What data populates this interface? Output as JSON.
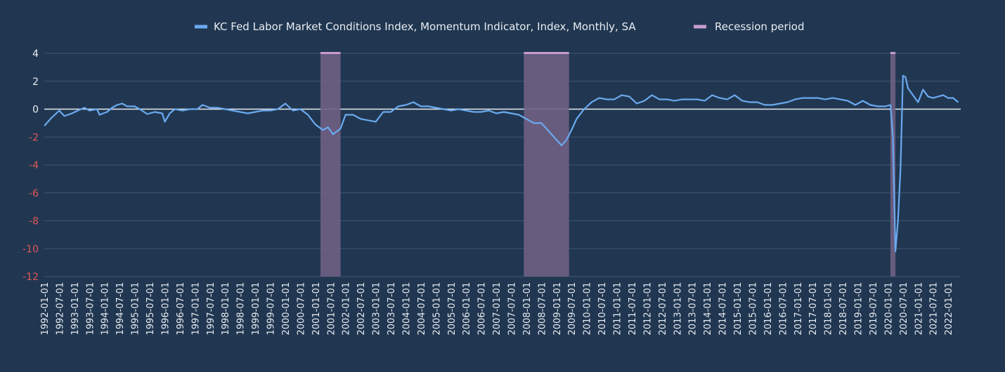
{
  "chart_data": {
    "type": "line",
    "title": "",
    "xlabel": "",
    "ylabel": "",
    "ylim": [
      -12,
      4
    ],
    "yticks": [
      4,
      2,
      0,
      -2,
      -4,
      -6,
      -8,
      -10,
      -12
    ],
    "xlim": [
      "1992-01-01",
      "2022-06-01"
    ],
    "grid": true,
    "legend_position": "top-center",
    "colors": {
      "background": "#213751",
      "grid": "#3e5673",
      "zero_line": "#e8ecf2",
      "line": "#6aaaf0",
      "recession_fill": "#6f6083",
      "recession_top": "#c89ccf",
      "tick_text": "#e8ecf2",
      "negative_tick_text": "#e05656",
      "legend_text": "#e8ecf2"
    },
    "x_ticks": [
      "1992-01-01",
      "1992-07-01",
      "1993-01-01",
      "1993-07-01",
      "1994-01-01",
      "1994-07-01",
      "1995-01-01",
      "1995-07-01",
      "1996-01-01",
      "1996-07-01",
      "1997-01-01",
      "1997-07-01",
      "1998-01-01",
      "1998-07-01",
      "1999-01-01",
      "1999-07-01",
      "2000-01-01",
      "2000-07-01",
      "2001-01-01",
      "2001-07-01",
      "2002-01-01",
      "2002-07-01",
      "2003-01-01",
      "2003-07-01",
      "2004-01-01",
      "2004-07-01",
      "2005-01-01",
      "2005-07-01",
      "2006-01-01",
      "2006-07-01",
      "2007-01-01",
      "2007-07-01",
      "2008-01-01",
      "2008-07-01",
      "2009-01-01",
      "2009-07-01",
      "2010-01-01",
      "2010-07-01",
      "2011-01-01",
      "2011-07-01",
      "2012-01-01",
      "2012-07-01",
      "2013-01-01",
      "2013-07-01",
      "2014-01-01",
      "2014-07-01",
      "2015-01-01",
      "2015-07-01",
      "2016-01-01",
      "2016-07-01",
      "2017-01-01",
      "2017-07-01",
      "2018-01-01",
      "2018-07-01",
      "2019-01-01",
      "2019-07-01",
      "2020-01-01",
      "2020-07-01",
      "2021-01-01",
      "2021-07-01",
      "2022-01-01"
    ],
    "series": [
      {
        "name": "KC Fed Labor Market Conditions Index, Momentum Indicator, Index, Monthly, SA",
        "points": [
          [
            "1992-01-01",
            -1.2
          ],
          [
            "1992-04-01",
            -0.6
          ],
          [
            "1992-07-01",
            -0.1
          ],
          [
            "1992-09-01",
            -0.5
          ],
          [
            "1992-12-01",
            -0.3
          ],
          [
            "1993-03-01",
            -0.05
          ],
          [
            "1993-05-01",
            0.1
          ],
          [
            "1993-07-01",
            -0.1
          ],
          [
            "1993-10-01",
            0.0
          ],
          [
            "1993-11-01",
            -0.4
          ],
          [
            "1994-02-01",
            -0.2
          ],
          [
            "1994-04-01",
            0.1
          ],
          [
            "1994-06-01",
            0.3
          ],
          [
            "1994-08-01",
            0.4
          ],
          [
            "1994-10-01",
            0.2
          ],
          [
            "1995-01-01",
            0.2
          ],
          [
            "1995-03-01",
            0.0
          ],
          [
            "1995-06-01",
            -0.35
          ],
          [
            "1995-09-01",
            -0.2
          ],
          [
            "1995-12-01",
            -0.3
          ],
          [
            "1996-01-01",
            -0.9
          ],
          [
            "1996-03-01",
            -0.3
          ],
          [
            "1996-05-01",
            0.0
          ],
          [
            "1996-08-01",
            -0.1
          ],
          [
            "1996-11-01",
            0.0
          ],
          [
            "1997-02-01",
            0.0
          ],
          [
            "1997-04-01",
            0.3
          ],
          [
            "1997-07-01",
            0.1
          ],
          [
            "1997-10-01",
            0.1
          ],
          [
            "1998-01-01",
            0.0
          ],
          [
            "1998-04-01",
            -0.1
          ],
          [
            "1998-07-01",
            -0.2
          ],
          [
            "1998-10-01",
            -0.3
          ],
          [
            "1999-01-01",
            -0.2
          ],
          [
            "1999-04-01",
            -0.1
          ],
          [
            "1999-07-01",
            -0.1
          ],
          [
            "1999-10-01",
            0.0
          ],
          [
            "2000-01-01",
            0.4
          ],
          [
            "2000-04-01",
            -0.1
          ],
          [
            "2000-07-01",
            0.0
          ],
          [
            "2000-10-01",
            -0.4
          ],
          [
            "2001-01-01",
            -1.1
          ],
          [
            "2001-04-01",
            -1.5
          ],
          [
            "2001-06-01",
            -1.3
          ],
          [
            "2001-08-01",
            -1.8
          ],
          [
            "2001-11-01",
            -1.4
          ],
          [
            "2002-01-01",
            -0.4
          ],
          [
            "2002-04-01",
            -0.4
          ],
          [
            "2002-07-01",
            -0.7
          ],
          [
            "2002-10-01",
            -0.8
          ],
          [
            "2003-01-01",
            -0.9
          ],
          [
            "2003-04-01",
            -0.2
          ],
          [
            "2003-07-01",
            -0.2
          ],
          [
            "2003-10-01",
            0.2
          ],
          [
            "2004-01-01",
            0.3
          ],
          [
            "2004-04-01",
            0.5
          ],
          [
            "2004-07-01",
            0.2
          ],
          [
            "2004-10-01",
            0.2
          ],
          [
            "2005-01-01",
            0.1
          ],
          [
            "2005-04-01",
            0.0
          ],
          [
            "2005-07-01",
            -0.1
          ],
          [
            "2005-10-01",
            0.0
          ],
          [
            "2006-01-01",
            -0.1
          ],
          [
            "2006-04-01",
            -0.2
          ],
          [
            "2006-07-01",
            -0.2
          ],
          [
            "2006-10-01",
            -0.1
          ],
          [
            "2007-01-01",
            -0.3
          ],
          [
            "2007-04-01",
            -0.2
          ],
          [
            "2007-07-01",
            -0.3
          ],
          [
            "2007-10-01",
            -0.4
          ],
          [
            "2008-01-01",
            -0.7
          ],
          [
            "2008-04-01",
            -1.0
          ],
          [
            "2008-07-01",
            -1.0
          ],
          [
            "2008-10-01",
            -1.6
          ],
          [
            "2009-01-01",
            -2.2
          ],
          [
            "2009-03-01",
            -2.6
          ],
          [
            "2009-05-01",
            -2.2
          ],
          [
            "2009-07-01",
            -1.5
          ],
          [
            "2009-09-01",
            -0.7
          ],
          [
            "2009-12-01",
            0.0
          ],
          [
            "2010-03-01",
            0.5
          ],
          [
            "2010-06-01",
            0.8
          ],
          [
            "2010-09-01",
            0.7
          ],
          [
            "2010-12-01",
            0.7
          ],
          [
            "2011-03-01",
            1.0
          ],
          [
            "2011-06-01",
            0.9
          ],
          [
            "2011-09-01",
            0.4
          ],
          [
            "2011-12-01",
            0.6
          ],
          [
            "2012-03-01",
            1.0
          ],
          [
            "2012-06-01",
            0.7
          ],
          [
            "2012-09-01",
            0.7
          ],
          [
            "2012-12-01",
            0.6
          ],
          [
            "2013-03-01",
            0.7
          ],
          [
            "2013-06-01",
            0.7
          ],
          [
            "2013-09-01",
            0.7
          ],
          [
            "2013-12-01",
            0.6
          ],
          [
            "2014-03-01",
            1.0
          ],
          [
            "2014-06-01",
            0.8
          ],
          [
            "2014-09-01",
            0.7
          ],
          [
            "2014-12-01",
            1.0
          ],
          [
            "2015-03-01",
            0.6
          ],
          [
            "2015-06-01",
            0.5
          ],
          [
            "2015-09-01",
            0.5
          ],
          [
            "2015-12-01",
            0.3
          ],
          [
            "2016-03-01",
            0.3
          ],
          [
            "2016-06-01",
            0.4
          ],
          [
            "2016-09-01",
            0.5
          ],
          [
            "2016-12-01",
            0.7
          ],
          [
            "2017-03-01",
            0.8
          ],
          [
            "2017-06-01",
            0.8
          ],
          [
            "2017-09-01",
            0.8
          ],
          [
            "2017-12-01",
            0.7
          ],
          [
            "2018-03-01",
            0.8
          ],
          [
            "2018-06-01",
            0.7
          ],
          [
            "2018-09-01",
            0.6
          ],
          [
            "2018-12-01",
            0.3
          ],
          [
            "2019-03-01",
            0.6
          ],
          [
            "2019-06-01",
            0.3
          ],
          [
            "2019-09-01",
            0.2
          ],
          [
            "2019-12-01",
            0.2
          ],
          [
            "2020-02-01",
            0.3
          ],
          [
            "2020-03-01",
            -2.0
          ],
          [
            "2020-04-01",
            -10.2
          ],
          [
            "2020-05-01",
            -8.0
          ],
          [
            "2020-06-01",
            -4.3
          ],
          [
            "2020-07-01",
            2.4
          ],
          [
            "2020-08-01",
            2.3
          ],
          [
            "2020-09-01",
            1.5
          ],
          [
            "2020-11-01",
            1.0
          ],
          [
            "2021-01-01",
            0.5
          ],
          [
            "2021-03-01",
            1.4
          ],
          [
            "2021-05-01",
            0.9
          ],
          [
            "2021-07-01",
            0.8
          ],
          [
            "2021-09-01",
            0.9
          ],
          [
            "2021-11-01",
            1.0
          ],
          [
            "2022-01-01",
            0.8
          ],
          [
            "2022-03-01",
            0.8
          ],
          [
            "2022-05-01",
            0.5
          ]
        ]
      }
    ],
    "recessions": [
      {
        "start": "2001-03-01",
        "end": "2001-11-01"
      },
      {
        "start": "2007-12-01",
        "end": "2009-06-01"
      },
      {
        "start": "2020-02-01",
        "end": "2020-04-01"
      }
    ],
    "legend": [
      {
        "label": "KC Fed Labor Market Conditions Index, Momentum Indicator, Index, Monthly, SA",
        "color": "#6aaaf0"
      },
      {
        "label": "Recession period",
        "color": "#c89ccf"
      }
    ]
  }
}
